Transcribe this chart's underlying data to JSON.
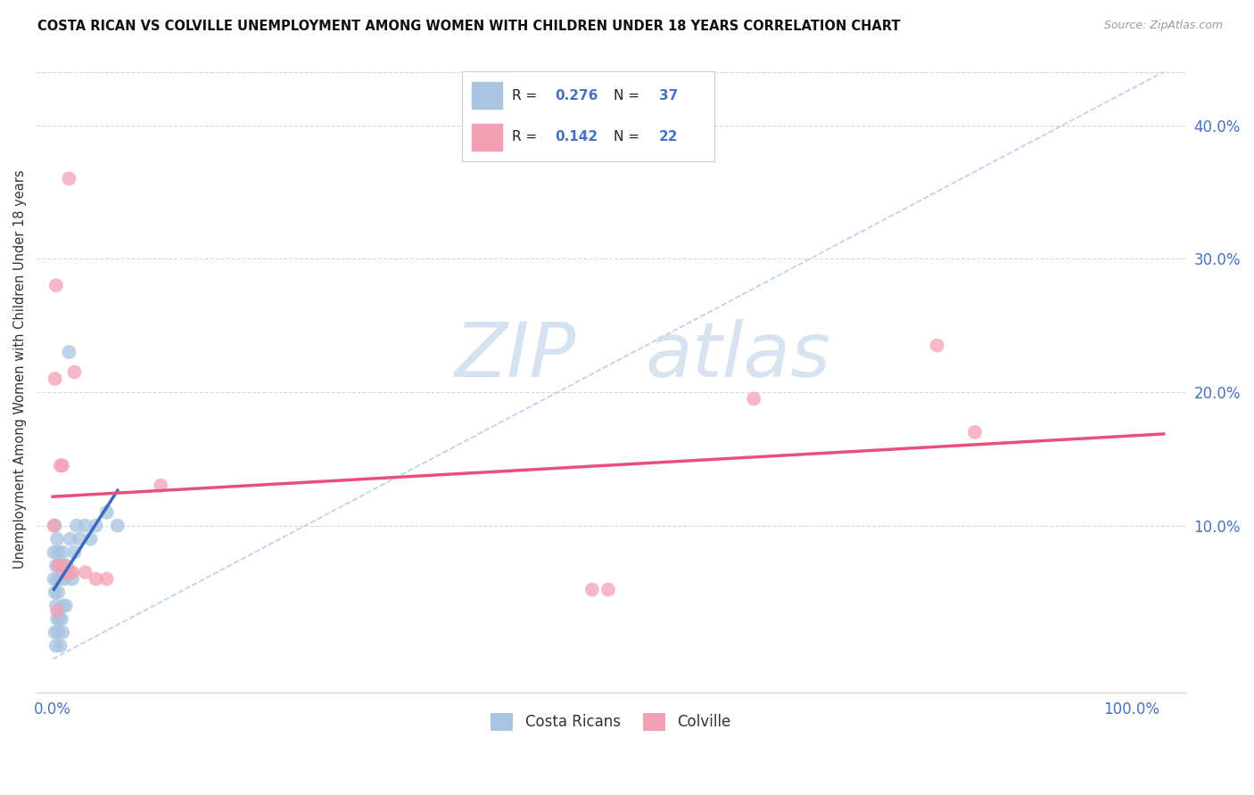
{
  "title": "COSTA RICAN VS COLVILLE UNEMPLOYMENT AMONG WOMEN WITH CHILDREN UNDER 18 YEARS CORRELATION CHART",
  "source": "Source: ZipAtlas.com",
  "ylabel": "Unemployment Among Women with Children Under 18 years",
  "xlim": [
    -0.015,
    1.05
  ],
  "ylim": [
    -0.025,
    0.46
  ],
  "costa_ricans_x": [
    0.001,
    0.001,
    0.002,
    0.002,
    0.002,
    0.003,
    0.003,
    0.003,
    0.004,
    0.004,
    0.004,
    0.005,
    0.005,
    0.005,
    0.006,
    0.006,
    0.007,
    0.007,
    0.008,
    0.008,
    0.009,
    0.009,
    0.01,
    0.011,
    0.012,
    0.013,
    0.015,
    0.016,
    0.018,
    0.02,
    0.022,
    0.025,
    0.03,
    0.035,
    0.04,
    0.05,
    0.06
  ],
  "costa_ricans_y": [
    0.06,
    0.08,
    0.02,
    0.05,
    0.1,
    0.01,
    0.04,
    0.07,
    0.03,
    0.06,
    0.09,
    0.02,
    0.05,
    0.08,
    0.03,
    0.07,
    0.01,
    0.06,
    0.03,
    0.07,
    0.02,
    0.08,
    0.04,
    0.06,
    0.04,
    0.07,
    0.23,
    0.09,
    0.06,
    0.08,
    0.1,
    0.09,
    0.1,
    0.09,
    0.1,
    0.11,
    0.1
  ],
  "colville_x": [
    0.001,
    0.002,
    0.003,
    0.004,
    0.005,
    0.007,
    0.009,
    0.01,
    0.012,
    0.015,
    0.015,
    0.018,
    0.02,
    0.03,
    0.04,
    0.05,
    0.1,
    0.5,
    0.515,
    0.65,
    0.82,
    0.855
  ],
  "colville_y": [
    0.1,
    0.21,
    0.28,
    0.036,
    0.07,
    0.145,
    0.145,
    0.07,
    0.065,
    0.065,
    0.36,
    0.065,
    0.215,
    0.065,
    0.06,
    0.06,
    0.13,
    0.052,
    0.052,
    0.195,
    0.235,
    0.17
  ],
  "costa_color": "#a8c4e0",
  "colville_color": "#f4a0b4",
  "costa_line_color": "#3a6abf",
  "colville_line_color": "#e8507a",
  "diagonal_color": "#b8d0ee",
  "watermark_zip": "ZIP",
  "watermark_atlas": "atlas",
  "background_color": "#ffffff",
  "grid_color": "#d8d8d8",
  "legend_r1": "R = 0.276",
  "legend_n1": "N = 37",
  "legend_r2": "R = 0.142",
  "legend_n2": "N = 22",
  "legend_label1": "Costa Ricans",
  "legend_label2": "Colville"
}
